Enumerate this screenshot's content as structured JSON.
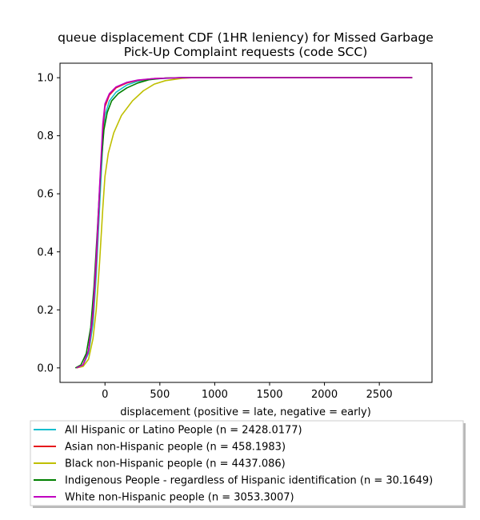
{
  "chart_data": {
    "type": "line",
    "title_lines": [
      "queue displacement CDF (1HR leniency) for Missed Garbage",
      "Pick-Up Complaint  requests (code SCC)"
    ],
    "xlabel": "displacement (positive = late, negative = early)",
    "ylabel": "",
    "xlim": [
      -410,
      2980
    ],
    "ylim": [
      -0.05,
      1.05
    ],
    "xticks": [
      0,
      500,
      1000,
      1500,
      2000,
      2500
    ],
    "yticks": [
      0.0,
      0.2,
      0.4,
      0.6,
      0.8,
      1.0
    ],
    "grid": false,
    "legend_position": "below plot",
    "series": [
      {
        "name": "All Hispanic or Latino People (n = 2428.0177)",
        "color": "#17becf",
        "points": [
          [
            -260,
            0.0
          ],
          [
            -200,
            0.01
          ],
          [
            -150,
            0.05
          ],
          [
            -110,
            0.15
          ],
          [
            -80,
            0.32
          ],
          [
            -50,
            0.55
          ],
          [
            -20,
            0.78
          ],
          [
            0,
            0.87
          ],
          [
            40,
            0.92
          ],
          [
            100,
            0.95
          ],
          [
            200,
            0.975
          ],
          [
            300,
            0.988
          ],
          [
            450,
            0.996
          ],
          [
            700,
            1.0
          ],
          [
            2800,
            1.0
          ]
        ]
      },
      {
        "name": "Asian non-Hispanic people (n = 458.1983)",
        "color": "#e6191c",
        "points": [
          [
            -260,
            0.0
          ],
          [
            -200,
            0.01
          ],
          [
            -150,
            0.06
          ],
          [
            -110,
            0.18
          ],
          [
            -80,
            0.36
          ],
          [
            -50,
            0.6
          ],
          [
            -20,
            0.82
          ],
          [
            0,
            0.9
          ],
          [
            40,
            0.94
          ],
          [
            100,
            0.965
          ],
          [
            200,
            0.982
          ],
          [
            300,
            0.991
          ],
          [
            450,
            0.997
          ],
          [
            700,
            1.0
          ],
          [
            2800,
            1.0
          ]
        ]
      },
      {
        "name": "Black non-Hispanic people (n = 4437.086)",
        "color": "#bfbf00",
        "points": [
          [
            -260,
            0.0
          ],
          [
            -200,
            0.005
          ],
          [
            -150,
            0.03
          ],
          [
            -110,
            0.1
          ],
          [
            -80,
            0.2
          ],
          [
            -50,
            0.36
          ],
          [
            -20,
            0.55
          ],
          [
            0,
            0.66
          ],
          [
            30,
            0.74
          ],
          [
            80,
            0.81
          ],
          [
            150,
            0.87
          ],
          [
            250,
            0.92
          ],
          [
            350,
            0.955
          ],
          [
            450,
            0.978
          ],
          [
            550,
            0.99
          ],
          [
            700,
            0.998
          ],
          [
            800,
            1.0
          ],
          [
            2800,
            1.0
          ]
        ]
      },
      {
        "name": "Indigenous People - regardless of Hispanic identification (n = 30.1649)",
        "color": "#008000",
        "points": [
          [
            -270,
            0.0
          ],
          [
            -220,
            0.01
          ],
          [
            -170,
            0.05
          ],
          [
            -130,
            0.14
          ],
          [
            -100,
            0.28
          ],
          [
            -70,
            0.47
          ],
          [
            -40,
            0.68
          ],
          [
            -10,
            0.82
          ],
          [
            20,
            0.88
          ],
          [
            60,
            0.92
          ],
          [
            120,
            0.945
          ],
          [
            200,
            0.965
          ],
          [
            300,
            0.982
          ],
          [
            400,
            0.993
          ],
          [
            550,
            0.999
          ],
          [
            700,
            1.0
          ],
          [
            2800,
            1.0
          ]
        ]
      },
      {
        "name": "White non-Hispanic people (n = 3053.3007)",
        "color": "#c000c0",
        "points": [
          [
            -260,
            0.0
          ],
          [
            -200,
            0.01
          ],
          [
            -150,
            0.06
          ],
          [
            -110,
            0.19
          ],
          [
            -80,
            0.38
          ],
          [
            -50,
            0.62
          ],
          [
            -20,
            0.84
          ],
          [
            0,
            0.91
          ],
          [
            40,
            0.945
          ],
          [
            100,
            0.968
          ],
          [
            200,
            0.984
          ],
          [
            300,
            0.992
          ],
          [
            450,
            0.997
          ],
          [
            700,
            1.0
          ],
          [
            2800,
            1.0
          ]
        ]
      }
    ]
  }
}
